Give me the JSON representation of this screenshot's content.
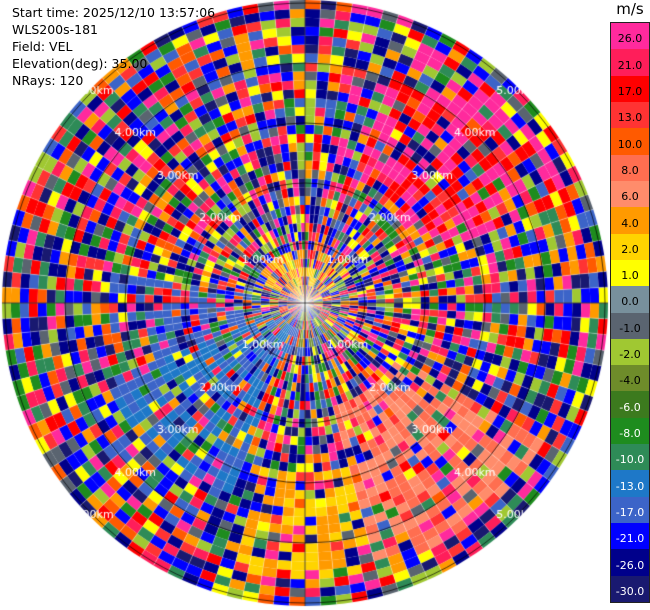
{
  "info": {
    "start_time": "Start time: 2025/12/10 13:57:06",
    "instrument": "WLS200s-181",
    "field": "Field: VEL",
    "elevation": "Elevation(deg): 35.00",
    "nrays": "NRays: 120"
  },
  "ppi": {
    "range_ring_labels": [
      "1.00km",
      "2.00km",
      "3.00km",
      "4.00km",
      "5.00km"
    ]
  },
  "colorbar": {
    "unit": "m/s",
    "ticks": [
      "26.0",
      "21.0",
      "17.0",
      "13.0",
      "10.0",
      "8.0",
      "6.0",
      "4.0",
      "2.0",
      "1.0",
      "0.0",
      "-1.0",
      "-2.0",
      "-4.0",
      "-6.0",
      "-8.0",
      "-10.0",
      "-13.0",
      "-17.0",
      "-21.0",
      "-26.0",
      "-30.0"
    ],
    "segment_colors": [
      "#ff2a9d",
      "#ff1e5a",
      "#ff0000",
      "#ff3333",
      "#ff5a00",
      "#ff6e50",
      "#ff8c6b",
      "#ff9a00",
      "#ffd400",
      "#ffff00",
      "#78909c",
      "#5a6470",
      "#a0c832",
      "#6e8c2a",
      "#3c7a1e",
      "#1e8c1e",
      "#2e8b57",
      "#1e78c8",
      "#3c64c8",
      "#0000ff",
      "#00008b",
      "#191970"
    ],
    "label_colors": [
      "#000",
      "#000",
      "#000",
      "#000",
      "#000",
      "#000",
      "#000",
      "#000",
      "#000",
      "#000",
      "#000",
      "#000",
      "#000",
      "#000",
      "#fff",
      "#fff",
      "#fff",
      "#fff",
      "#fff",
      "#fff",
      "#fff",
      "#fff"
    ]
  }
}
